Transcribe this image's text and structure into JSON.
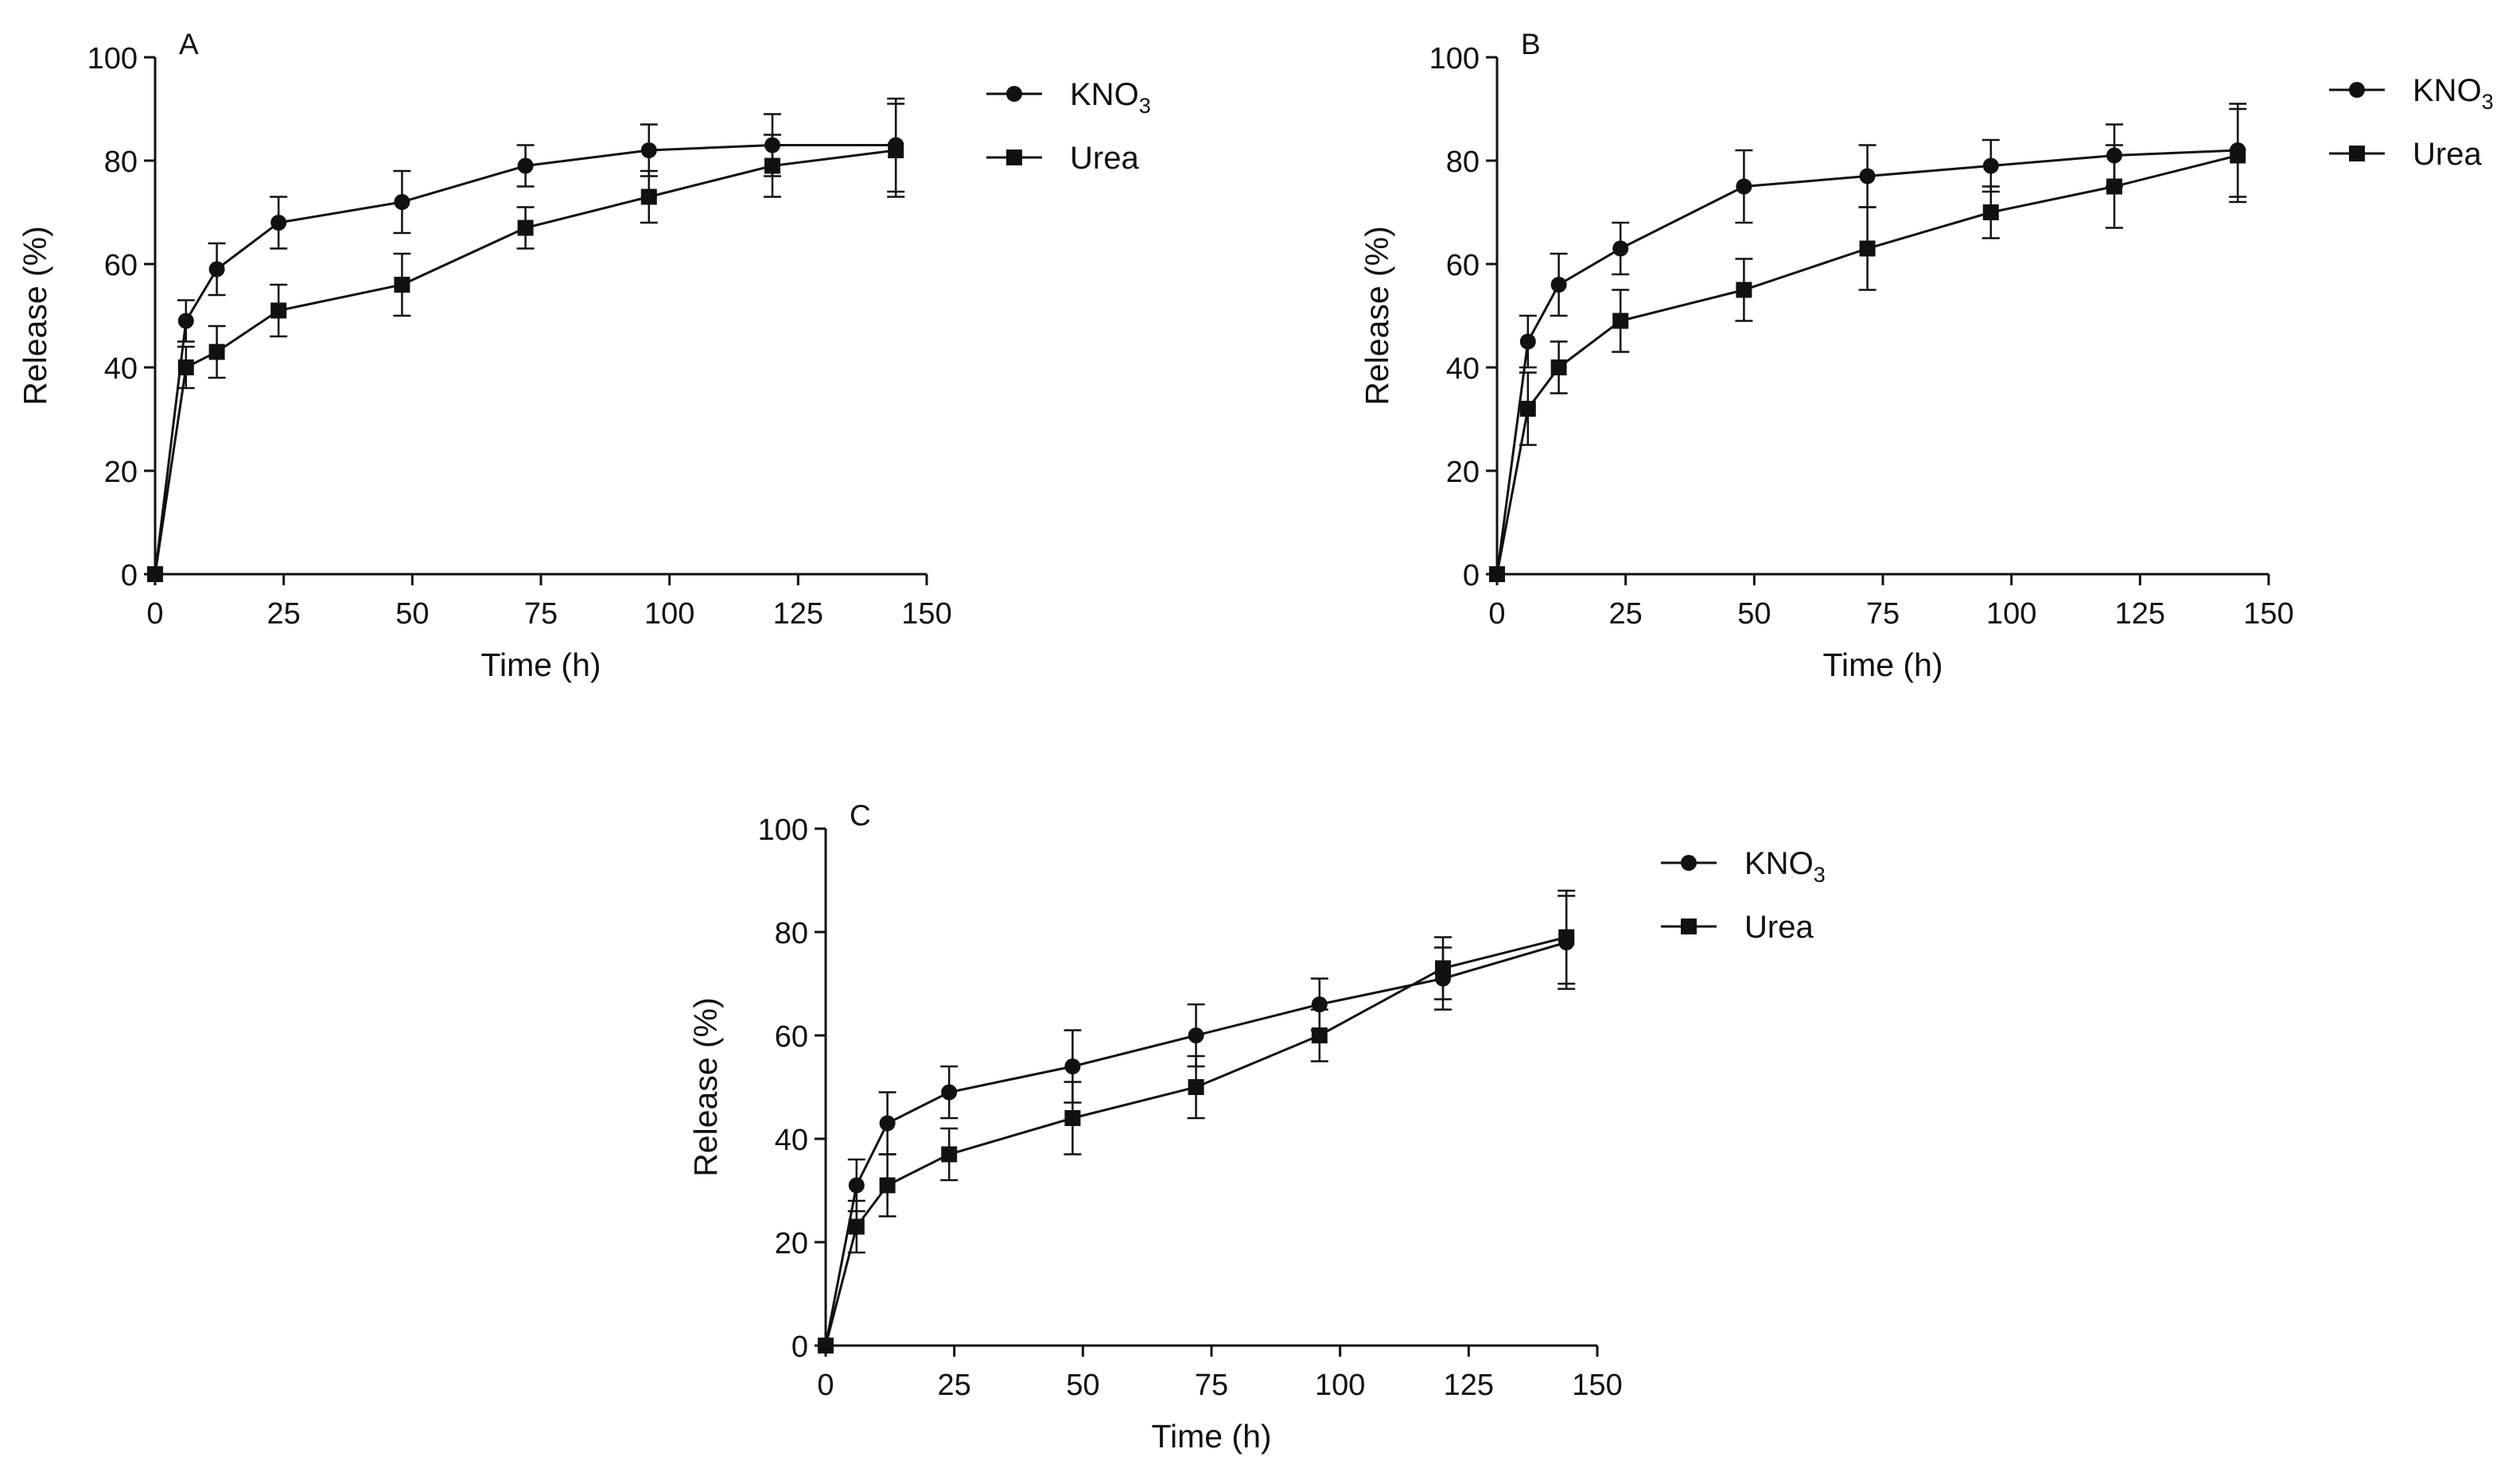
{
  "chart_data": [
    {
      "type": "line",
      "panel_label": "A",
      "xlabel": "Time (h)",
      "ylabel": "Release (%)",
      "xlim": [
        0,
        150
      ],
      "ylim": [
        0,
        100
      ],
      "xticks": [
        "0",
        "25",
        "50",
        "75",
        "100",
        "125",
        "150"
      ],
      "yticks": [
        "0",
        "20",
        "40",
        "60",
        "80",
        "100"
      ],
      "grid": false,
      "legend_placement": "right",
      "series": [
        {
          "name": "KNO",
          "name_subscript": "3",
          "marker": "circle",
          "x": [
            0,
            6,
            12,
            24,
            48,
            72,
            96,
            120,
            144
          ],
          "y": [
            0,
            49,
            59,
            68,
            72,
            79,
            82,
            83,
            83
          ],
          "error": [
            0,
            4,
            5,
            5,
            6,
            4,
            5,
            6,
            9
          ]
        },
        {
          "name": "Urea",
          "marker": "square",
          "x": [
            0,
            6,
            12,
            24,
            48,
            72,
            96,
            120,
            144
          ],
          "y": [
            0,
            40,
            43,
            51,
            56,
            67,
            73,
            79,
            82
          ],
          "error": [
            0,
            4,
            5,
            5,
            6,
            4,
            5,
            6,
            9
          ]
        }
      ]
    },
    {
      "type": "line",
      "panel_label": "B",
      "xlabel": "Time (h)",
      "ylabel": "Release (%)",
      "xlim": [
        0,
        150
      ],
      "ylim": [
        0,
        100
      ],
      "xticks": [
        "0",
        "25",
        "50",
        "75",
        "100",
        "125",
        "150"
      ],
      "yticks": [
        "0",
        "20",
        "40",
        "60",
        "80",
        "100"
      ],
      "grid": false,
      "legend_placement": "right",
      "series": [
        {
          "name": "KNO",
          "name_subscript": "3",
          "marker": "circle",
          "x": [
            0,
            6,
            12,
            24,
            48,
            72,
            96,
            120,
            144
          ],
          "y": [
            0,
            45,
            56,
            63,
            75,
            77,
            79,
            81,
            82
          ],
          "error": [
            0,
            5,
            6,
            5,
            7,
            6,
            5,
            6,
            9
          ]
        },
        {
          "name": "Urea",
          "marker": "square",
          "x": [
            0,
            6,
            12,
            24,
            48,
            72,
            96,
            120,
            144
          ],
          "y": [
            0,
            32,
            40,
            49,
            55,
            63,
            70,
            75,
            81
          ],
          "error": [
            0,
            7,
            5,
            6,
            6,
            8,
            5,
            8,
            9
          ]
        }
      ]
    },
    {
      "type": "line",
      "panel_label": "C",
      "xlabel": "Time (h)",
      "ylabel": "Release (%)",
      "xlim": [
        0,
        150
      ],
      "ylim": [
        0,
        100
      ],
      "xticks": [
        "0",
        "25",
        "50",
        "75",
        "100",
        "125",
        "150"
      ],
      "yticks": [
        "0",
        "20",
        "40",
        "60",
        "80",
        "100"
      ],
      "grid": false,
      "legend_placement": "right",
      "series": [
        {
          "name": "KNO",
          "name_subscript": "3",
          "marker": "circle",
          "x": [
            0,
            6,
            12,
            24,
            48,
            72,
            96,
            120,
            144
          ],
          "y": [
            0,
            31,
            43,
            49,
            54,
            60,
            66,
            71,
            78
          ],
          "error": [
            0,
            5,
            6,
            5,
            7,
            6,
            5,
            6,
            9
          ]
        },
        {
          "name": "Urea",
          "marker": "square",
          "x": [
            0,
            6,
            12,
            24,
            48,
            72,
            96,
            120,
            144
          ],
          "y": [
            0,
            23,
            31,
            37,
            44,
            50,
            60,
            73,
            79
          ],
          "error": [
            0,
            5,
            6,
            5,
            7,
            6,
            5,
            6,
            9
          ]
        }
      ]
    }
  ]
}
